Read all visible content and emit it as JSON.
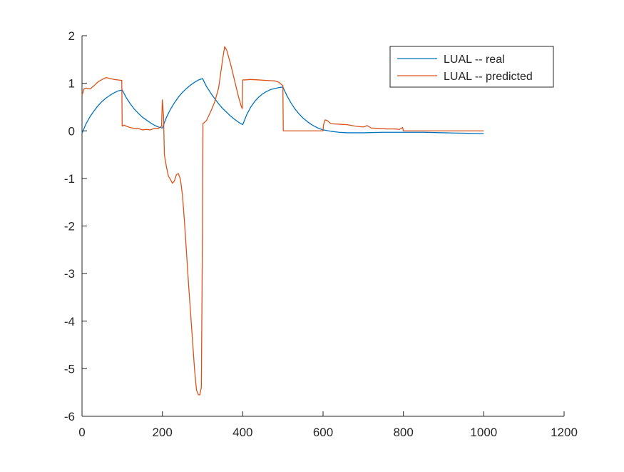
{
  "chart_data": {
    "type": "line",
    "title": "",
    "xlabel": "",
    "ylabel": "",
    "xlim": [
      0,
      1200
    ],
    "ylim": [
      -6,
      2
    ],
    "xticks": [
      0,
      200,
      400,
      600,
      800,
      1000,
      1200
    ],
    "yticks": [
      -6,
      -5,
      -4,
      -3,
      -2,
      -1,
      0,
      1,
      2
    ],
    "grid": false,
    "legend_position": "top-right",
    "series": [
      {
        "name": "LUAL -- real",
        "color": "#0072BD",
        "x": [
          0,
          10,
          20,
          30,
          40,
          50,
          60,
          70,
          80,
          90,
          100,
          110,
          120,
          130,
          140,
          150,
          160,
          170,
          180,
          190,
          200,
          210,
          220,
          230,
          240,
          250,
          260,
          270,
          280,
          290,
          300,
          310,
          320,
          330,
          340,
          350,
          360,
          370,
          380,
          390,
          400,
          410,
          420,
          430,
          440,
          450,
          460,
          470,
          480,
          490,
          500,
          510,
          520,
          530,
          540,
          550,
          560,
          570,
          580,
          590,
          600,
          620,
          640,
          660,
          680,
          700,
          750,
          800,
          850,
          900,
          950,
          1000
        ],
        "values": [
          -0.05,
          0.15,
          0.3,
          0.42,
          0.53,
          0.62,
          0.69,
          0.75,
          0.8,
          0.84,
          0.86,
          0.7,
          0.57,
          0.46,
          0.37,
          0.29,
          0.23,
          0.17,
          0.12,
          0.08,
          0.06,
          0.28,
          0.45,
          0.59,
          0.71,
          0.81,
          0.89,
          0.96,
          1.02,
          1.07,
          1.1,
          0.93,
          0.8,
          0.68,
          0.57,
          0.47,
          0.39,
          0.31,
          0.24,
          0.18,
          0.13,
          0.34,
          0.5,
          0.62,
          0.71,
          0.78,
          0.83,
          0.87,
          0.89,
          0.91,
          0.92,
          0.74,
          0.59,
          0.46,
          0.36,
          0.27,
          0.2,
          0.14,
          0.09,
          0.05,
          0.02,
          -0.01,
          -0.03,
          -0.04,
          -0.04,
          -0.04,
          -0.03,
          -0.03,
          -0.03,
          -0.04,
          -0.05,
          -0.06
        ]
      },
      {
        "name": "LUAL -- predicted",
        "color": "#D95319",
        "x": [
          0,
          5,
          10,
          20,
          30,
          40,
          50,
          60,
          70,
          80,
          90,
          99,
          100,
          105,
          110,
          120,
          130,
          140,
          150,
          160,
          170,
          180,
          190,
          198,
          200,
          203,
          205,
          210,
          215,
          220,
          225,
          230,
          235,
          240,
          245,
          250,
          255,
          260,
          265,
          270,
          275,
          280,
          285,
          290,
          293,
          297,
          300,
          301,
          305,
          310,
          320,
          330,
          340,
          350,
          355,
          360,
          370,
          380,
          390,
          397,
          399,
          400,
          402,
          405,
          420,
          440,
          460,
          480,
          490,
          500,
          501,
          520,
          550,
          580,
          600,
          601,
          605,
          610,
          615,
          620,
          640,
          660,
          680,
          700,
          710,
          720,
          740,
          760,
          780,
          790,
          798,
          800,
          801,
          820,
          850,
          900,
          950,
          1000
        ],
        "values": [
          0.75,
          0.88,
          0.9,
          0.88,
          0.95,
          1.03,
          1.08,
          1.12,
          1.1,
          1.08,
          1.07,
          1.06,
          0.1,
          0.12,
          0.1,
          0.07,
          0.05,
          0.05,
          0.02,
          0.03,
          0.02,
          0.05,
          0.05,
          0.1,
          0.65,
          0.3,
          -0.5,
          -0.75,
          -0.95,
          -1.02,
          -1.1,
          -1.05,
          -0.92,
          -0.9,
          -1.02,
          -1.35,
          -1.9,
          -2.55,
          -3.2,
          -3.8,
          -4.4,
          -5.0,
          -5.45,
          -5.55,
          -5.55,
          -5.4,
          -2.0,
          0.15,
          0.18,
          0.22,
          0.4,
          0.6,
          0.9,
          1.5,
          1.77,
          1.7,
          1.4,
          1.05,
          0.7,
          0.5,
          0.47,
          1.07,
          1.07,
          1.07,
          1.08,
          1.07,
          1.06,
          1.05,
          1.02,
          0.95,
          0.0,
          0.0,
          0.0,
          0.0,
          0.0,
          0.12,
          0.23,
          0.22,
          0.18,
          0.15,
          0.14,
          0.13,
          0.1,
          0.08,
          0.11,
          0.06,
          0.05,
          0.04,
          0.04,
          0.03,
          0.07,
          0.0,
          0.0,
          0.0,
          0.0,
          0.0,
          0.0,
          0.0
        ]
      }
    ]
  }
}
